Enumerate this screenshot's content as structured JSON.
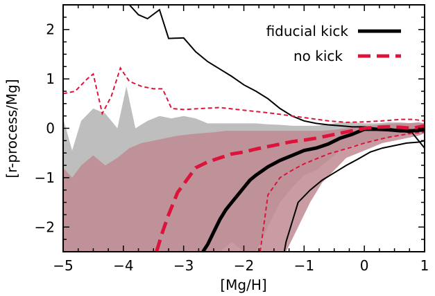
{
  "chart_data": {
    "type": "line",
    "title": "",
    "xlabel": "[Mg/H]",
    "ylabel": "[r-process/Mg]",
    "xlim": [
      -5,
      1
    ],
    "ylim": [
      -2.5,
      2.5
    ],
    "xticks": [
      -5,
      -4,
      -3,
      -2,
      -1,
      0,
      1
    ],
    "xtick_labels": [
      "−5",
      "−4",
      "−3",
      "−2",
      "−1",
      "0",
      "1"
    ],
    "yticks": [
      -2,
      -1,
      0,
      1,
      2
    ],
    "ytick_labels": [
      "−2",
      "−1",
      "0",
      "1",
      "2"
    ],
    "grid": false,
    "legend_position": "top-right",
    "colors": {
      "fiducial": "#000000",
      "nokick": "#dc143c",
      "fiducial_band": "#bebebe",
      "nokick_band": "#c08b93"
    },
    "series": [
      {
        "name": "fiducial kick",
        "style": "solid-thick",
        "x": [
          -2.68,
          -2.6,
          -2.5,
          -2.4,
          -2.3,
          -2.2,
          -2.1,
          -2.0,
          -1.9,
          -1.8,
          -1.6,
          -1.4,
          -1.2,
          -1.0,
          -0.8,
          -0.6,
          -0.4,
          -0.2,
          0.0,
          0.2,
          0.4,
          0.6,
          0.8,
          1.0
        ],
        "y": [
          -2.5,
          -2.35,
          -2.1,
          -1.85,
          -1.65,
          -1.5,
          -1.35,
          -1.2,
          -1.05,
          -0.95,
          -0.78,
          -0.65,
          -0.55,
          -0.45,
          -0.4,
          -0.32,
          -0.2,
          -0.12,
          -0.02,
          -0.02,
          -0.03,
          -0.05,
          -0.05,
          -0.03
        ]
      },
      {
        "name": "no kick",
        "style": "dashed-thick",
        "x": [
          -3.45,
          -3.35,
          -3.25,
          -3.1,
          -2.95,
          -2.8,
          -2.6,
          -2.4,
          -2.2,
          -2.0,
          -1.8,
          -1.6,
          -1.4,
          -1.2,
          -1.0,
          -0.8,
          -0.6,
          -0.4,
          -0.2,
          0.0,
          0.2,
          0.4,
          0.6,
          0.8,
          1.0
        ],
        "y": [
          -2.5,
          -2.1,
          -1.75,
          -1.3,
          -1.05,
          -0.8,
          -0.68,
          -0.6,
          -0.52,
          -0.48,
          -0.42,
          -0.37,
          -0.32,
          -0.27,
          -0.24,
          -0.2,
          -0.15,
          -0.1,
          -0.05,
          0.0,
          0.02,
          0.03,
          0.02,
          0.0,
          0.05
        ]
      }
    ],
    "ranges": [
      {
        "series": "fiducial kick",
        "x": [
          -5.0,
          -4.85,
          -4.7,
          -4.5,
          -4.3,
          -4.1,
          -3.95,
          -3.8,
          -3.6,
          -3.4,
          -3.2,
          -3.0,
          -2.8,
          -2.6,
          -2.4,
          -2.2,
          -2.0,
          -1.8,
          -1.6,
          -1.4,
          -1.2,
          -1.0,
          -0.8,
          -0.6,
          -0.4,
          -0.2,
          0.0,
          0.2,
          0.4,
          0.6,
          0.8,
          1.0
        ],
        "upper": [
          0.2,
          -0.45,
          0.15,
          0.4,
          0.3,
          0.0,
          0.85,
          0.0,
          0.15,
          0.25,
          0.2,
          0.25,
          0.2,
          0.1,
          0.1,
          0.1,
          0.1,
          0.1,
          0.08,
          0.07,
          0.05,
          0.05,
          0.05,
          0.08,
          0.12,
          0.12,
          0.1,
          0.1,
          0.12,
          0.12,
          0.1,
          0.1
        ],
        "lower": [
          -2.5,
          -2.5,
          -2.5,
          -2.5,
          -2.5,
          -2.5,
          -2.5,
          -2.5,
          -2.5,
          -2.5,
          -2.5,
          -2.5,
          -2.5,
          -2.5,
          -2.5,
          -2.3,
          -2.5,
          -2.5,
          -2.0,
          -1.5,
          -1.2,
          -0.95,
          -0.85,
          -0.65,
          -0.45,
          -0.35,
          -0.3,
          -0.25,
          -0.2,
          -0.15,
          -0.1,
          0.0
        ]
      },
      {
        "series": "no kick",
        "x": [
          -5.0,
          -4.85,
          -4.7,
          -4.5,
          -4.3,
          -4.1,
          -3.9,
          -3.7,
          -3.5,
          -3.3,
          -3.1,
          -2.9,
          -2.7,
          -2.5,
          -2.3,
          -2.1,
          -1.9,
          -1.7,
          -1.5,
          -1.3,
          -1.1,
          -0.9,
          -0.7,
          -0.5,
          -0.3,
          -0.1,
          0.1,
          0.3,
          0.5,
          0.7,
          0.9,
          1.0
        ],
        "upper": [
          -0.8,
          -1.0,
          -0.75,
          -0.55,
          -0.75,
          -0.6,
          -0.4,
          -0.3,
          -0.25,
          -0.2,
          -0.15,
          -0.12,
          -0.1,
          -0.08,
          -0.05,
          -0.05,
          -0.05,
          -0.05,
          -0.05,
          -0.05,
          -0.05,
          -0.05,
          -0.05,
          -0.03,
          0.0,
          0.05,
          0.05,
          0.08,
          0.1,
          0.1,
          0.12,
          0.1
        ],
        "lower": [
          -2.5,
          -2.5,
          -2.5,
          -2.5,
          -2.5,
          -2.5,
          -2.5,
          -2.5,
          -2.5,
          -2.5,
          -2.5,
          -2.5,
          -2.5,
          -2.5,
          -2.5,
          -2.5,
          -2.5,
          -2.5,
          -2.5,
          -2.5,
          -2.0,
          -1.5,
          -1.1,
          -0.85,
          -0.6,
          -0.5,
          -0.4,
          -0.3,
          -0.25,
          -0.2,
          -0.15,
          -0.1
        ]
      }
    ],
    "envelopes": [
      {
        "series": "fiducial kick",
        "style": "thin-solid",
        "upper_x": [
          -3.9,
          -3.75,
          -3.6,
          -3.4,
          -3.25,
          -3.0,
          -2.8,
          -2.6,
          -2.4,
          -2.2,
          -2.0,
          -1.8,
          -1.6,
          -1.4,
          -1.2,
          -1.0,
          -0.8,
          -0.6,
          -0.4,
          -0.2,
          0.0,
          0.2,
          0.4,
          0.6,
          0.8,
          1.0
        ],
        "upper_y": [
          2.5,
          2.3,
          2.22,
          2.4,
          1.82,
          1.83,
          1.55,
          1.35,
          1.2,
          1.05,
          0.88,
          0.75,
          0.6,
          0.4,
          0.25,
          0.15,
          0.1,
          0.07,
          0.05,
          0.03,
          0.03,
          0.0,
          0.0,
          -0.05,
          -0.1,
          -0.4
        ],
        "lower_x": [
          -1.33,
          -1.3,
          -1.1,
          -0.9,
          -0.7,
          -0.5,
          -0.3,
          -0.1,
          0.1,
          0.3,
          0.5,
          0.7,
          0.9,
          1.0
        ],
        "lower_y": [
          -2.5,
          -2.3,
          -1.5,
          -1.25,
          -1.05,
          -0.9,
          -0.75,
          -0.62,
          -0.48,
          -0.4,
          -0.35,
          -0.3,
          -0.28,
          -0.25
        ]
      },
      {
        "series": "no kick",
        "style": "thin-dashed",
        "upper_x": [
          -5.0,
          -4.8,
          -4.6,
          -4.5,
          -4.35,
          -4.2,
          -4.05,
          -3.9,
          -3.7,
          -3.5,
          -3.35,
          -3.2,
          -3.0,
          -2.7,
          -2.4,
          -2.1,
          -1.8,
          -1.5,
          -1.2,
          -0.9,
          -0.6,
          -0.3,
          0.0,
          0.3,
          0.6,
          0.8,
          1.0
        ],
        "upper_y": [
          0.7,
          0.75,
          1.0,
          1.1,
          0.3,
          0.65,
          1.22,
          0.95,
          0.85,
          0.8,
          0.8,
          0.4,
          0.38,
          0.4,
          0.42,
          0.38,
          0.34,
          0.3,
          0.25,
          0.2,
          0.15,
          0.12,
          0.13,
          0.15,
          0.18,
          0.18,
          0.15
        ],
        "lower_x": [
          -1.73,
          -1.7,
          -1.6,
          -1.4,
          -1.2,
          -1.0,
          -0.8,
          -0.6,
          -0.4,
          -0.2,
          0.0,
          0.2,
          0.4,
          0.6,
          0.8,
          1.0
        ],
        "lower_y": [
          -2.5,
          -2.25,
          -1.35,
          -1.0,
          -0.85,
          -0.72,
          -0.62,
          -0.52,
          -0.45,
          -0.38,
          -0.3,
          -0.24,
          -0.18,
          -0.14,
          -0.1,
          -0.08
        ]
      }
    ]
  }
}
